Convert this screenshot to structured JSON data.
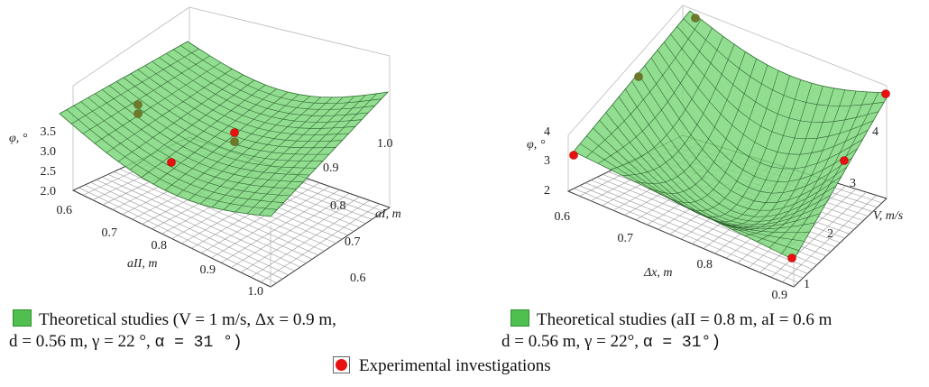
{
  "chart_data": [
    {
      "type": "surface",
      "z_label": "φ, °",
      "z_ticks": [
        "2.0",
        "2.5",
        "3.0",
        "3.5"
      ],
      "y_label": "aI, m",
      "y_ticks": [
        "0.6",
        "0.7",
        "0.8",
        "0.9",
        "1.0"
      ],
      "x_label": "aII, m",
      "x_ticks": [
        "0.6",
        "0.7",
        "0.8",
        "0.9",
        "1.0"
      ],
      "surface_color": "#7ed87e",
      "experimental_points": [
        {
          "x": 0.65,
          "y": 0.9,
          "z": 2.7
        },
        {
          "x": 0.9,
          "y": 0.95,
          "z": 2.9
        },
        {
          "x": 0.7,
          "y": 0.85,
          "z": 3.3
        },
        {
          "x": 0.72,
          "y": 0.86,
          "z": 3.4
        },
        {
          "x": 0.86,
          "y": 0.93,
          "z": 3.1
        }
      ]
    },
    {
      "type": "surface",
      "z_label": "φ, °",
      "z_ticks": [
        "2",
        "3",
        "4"
      ],
      "y_label": "V, m/s",
      "y_ticks": [
        "1",
        "2",
        "3",
        "4"
      ],
      "x_label": "Δx, m",
      "x_ticks": [
        "0.6",
        "0.7",
        "0.8",
        "0.9"
      ],
      "surface_color": "#7ed87e",
      "experimental_points": [
        {
          "x": 0.6,
          "y": 1,
          "z": 3.1
        },
        {
          "x": 0.9,
          "y": 1.1,
          "z": 2.2
        },
        {
          "x": 0.85,
          "y": 3.2,
          "z": 2.6
        },
        {
          "x": 0.8,
          "y": 4,
          "z": 3.6
        },
        {
          "x": 0.65,
          "y": 3.8,
          "z": 4.2
        },
        {
          "x": 0.7,
          "y": 4.2,
          "z": 4.6
        }
      ]
    }
  ],
  "legend": {
    "left_line1": "Theoretical studies (V = 1 m/s, Δx = 0.9 m,",
    "left_line2_a": "d = 0.56 m, γ = 22 °, ",
    "left_line2_b": "α = 31 °)",
    "right_line1": "Theoretical studies (aII = 0.8 m, aI = 0.6 m",
    "right_line2_a": "d = 0.56 m, γ = 22°, ",
    "right_line2_b": "α = 31°)",
    "experimental": "Experimental investigations"
  }
}
